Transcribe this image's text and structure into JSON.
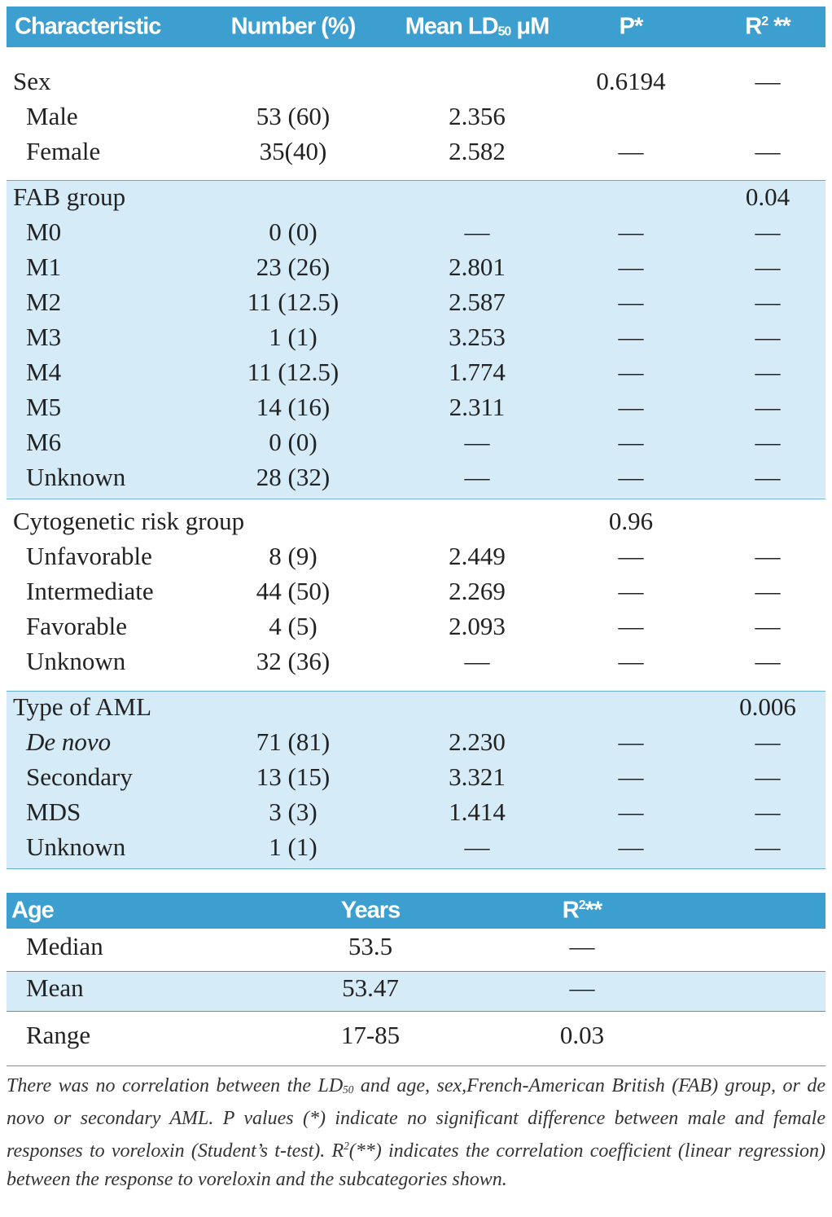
{
  "table": {
    "header": [
      "Characteristic",
      "Number (%)",
      [
        "Mean LD",
        "50",
        " μM"
      ],
      "P*",
      [
        "R",
        "2",
        " **"
      ]
    ],
    "sections": [
      {
        "rows": [
          [
            "Sex",
            null,
            null,
            "0.6194",
            "—"
          ],
          [
            "Male",
            "53 (60)",
            "2.356",
            null,
            null
          ],
          [
            "Female",
            "35(40)",
            "2.582",
            "—",
            "—"
          ]
        ]
      },
      {
        "rows": [
          [
            "FAB group",
            null,
            null,
            null,
            "0.04"
          ],
          [
            "M0",
            "0 (0)",
            "—",
            "—",
            "—"
          ],
          [
            "M1",
            "23 (26)",
            "2.801",
            "—",
            "—"
          ],
          [
            "M2",
            "11 (12.5)",
            "2.587",
            "—",
            "—"
          ],
          [
            "M3",
            "1 (1)",
            "3.253",
            "—",
            "—"
          ],
          [
            "M4",
            "11 (12.5)",
            "1.774",
            "—",
            "—"
          ],
          [
            "M5",
            "14 (16)",
            "2.311",
            "—",
            "—"
          ],
          [
            "M6",
            "0 (0)",
            "—",
            "—",
            "—"
          ],
          [
            "Unknown",
            "28 (32)",
            "—",
            "—",
            "—"
          ]
        ]
      },
      {
        "rows": [
          [
            "Cytogenetic risk group",
            null,
            null,
            "0.96",
            null
          ],
          [
            "Unfavorable",
            "8 (9)",
            "2.449",
            "—",
            "—"
          ],
          [
            "Intermediate",
            "44 (50)",
            "2.269",
            "—",
            "—"
          ],
          [
            "Favorable",
            "4 (5)",
            "2.093",
            "—",
            "—"
          ],
          [
            "Unknown",
            "32 (36)",
            "—",
            "—",
            "—"
          ]
        ]
      },
      {
        "rows": [
          [
            "Type of AML",
            null,
            null,
            null,
            "0.006"
          ],
          [
            "De novo",
            "71 (81)",
            "2.230",
            "—",
            "—"
          ],
          [
            "Secondary",
            "13 (15)",
            "3.321",
            "—",
            "—"
          ],
          [
            "MDS",
            "3 (3)",
            "1.414",
            "—",
            "—"
          ],
          [
            "Unknown",
            "1 (1)",
            "—",
            "—",
            "—"
          ]
        ]
      }
    ]
  },
  "age_table": {
    "header": [
      "Age",
      "Years",
      [
        "R",
        "2",
        "**"
      ]
    ],
    "rows": [
      [
        "Median",
        "53.5",
        "—"
      ],
      [
        "Mean",
        "53.47",
        "—"
      ],
      [
        "Range",
        "17-85",
        "0.03"
      ]
    ]
  },
  "footnote": [
    "There was no correlation between the LD",
    "50",
    " and age, sex,French-American British (FAB) group, or de novo or secondary AML. P values (*) indicate no significant difference between male and female responses to voreloxin (Student’s t-test). R",
    "2",
    "(**) indicates the correlation coefficient (linear regression) between the response to voreloxin and the subcategories shown."
  ]
}
